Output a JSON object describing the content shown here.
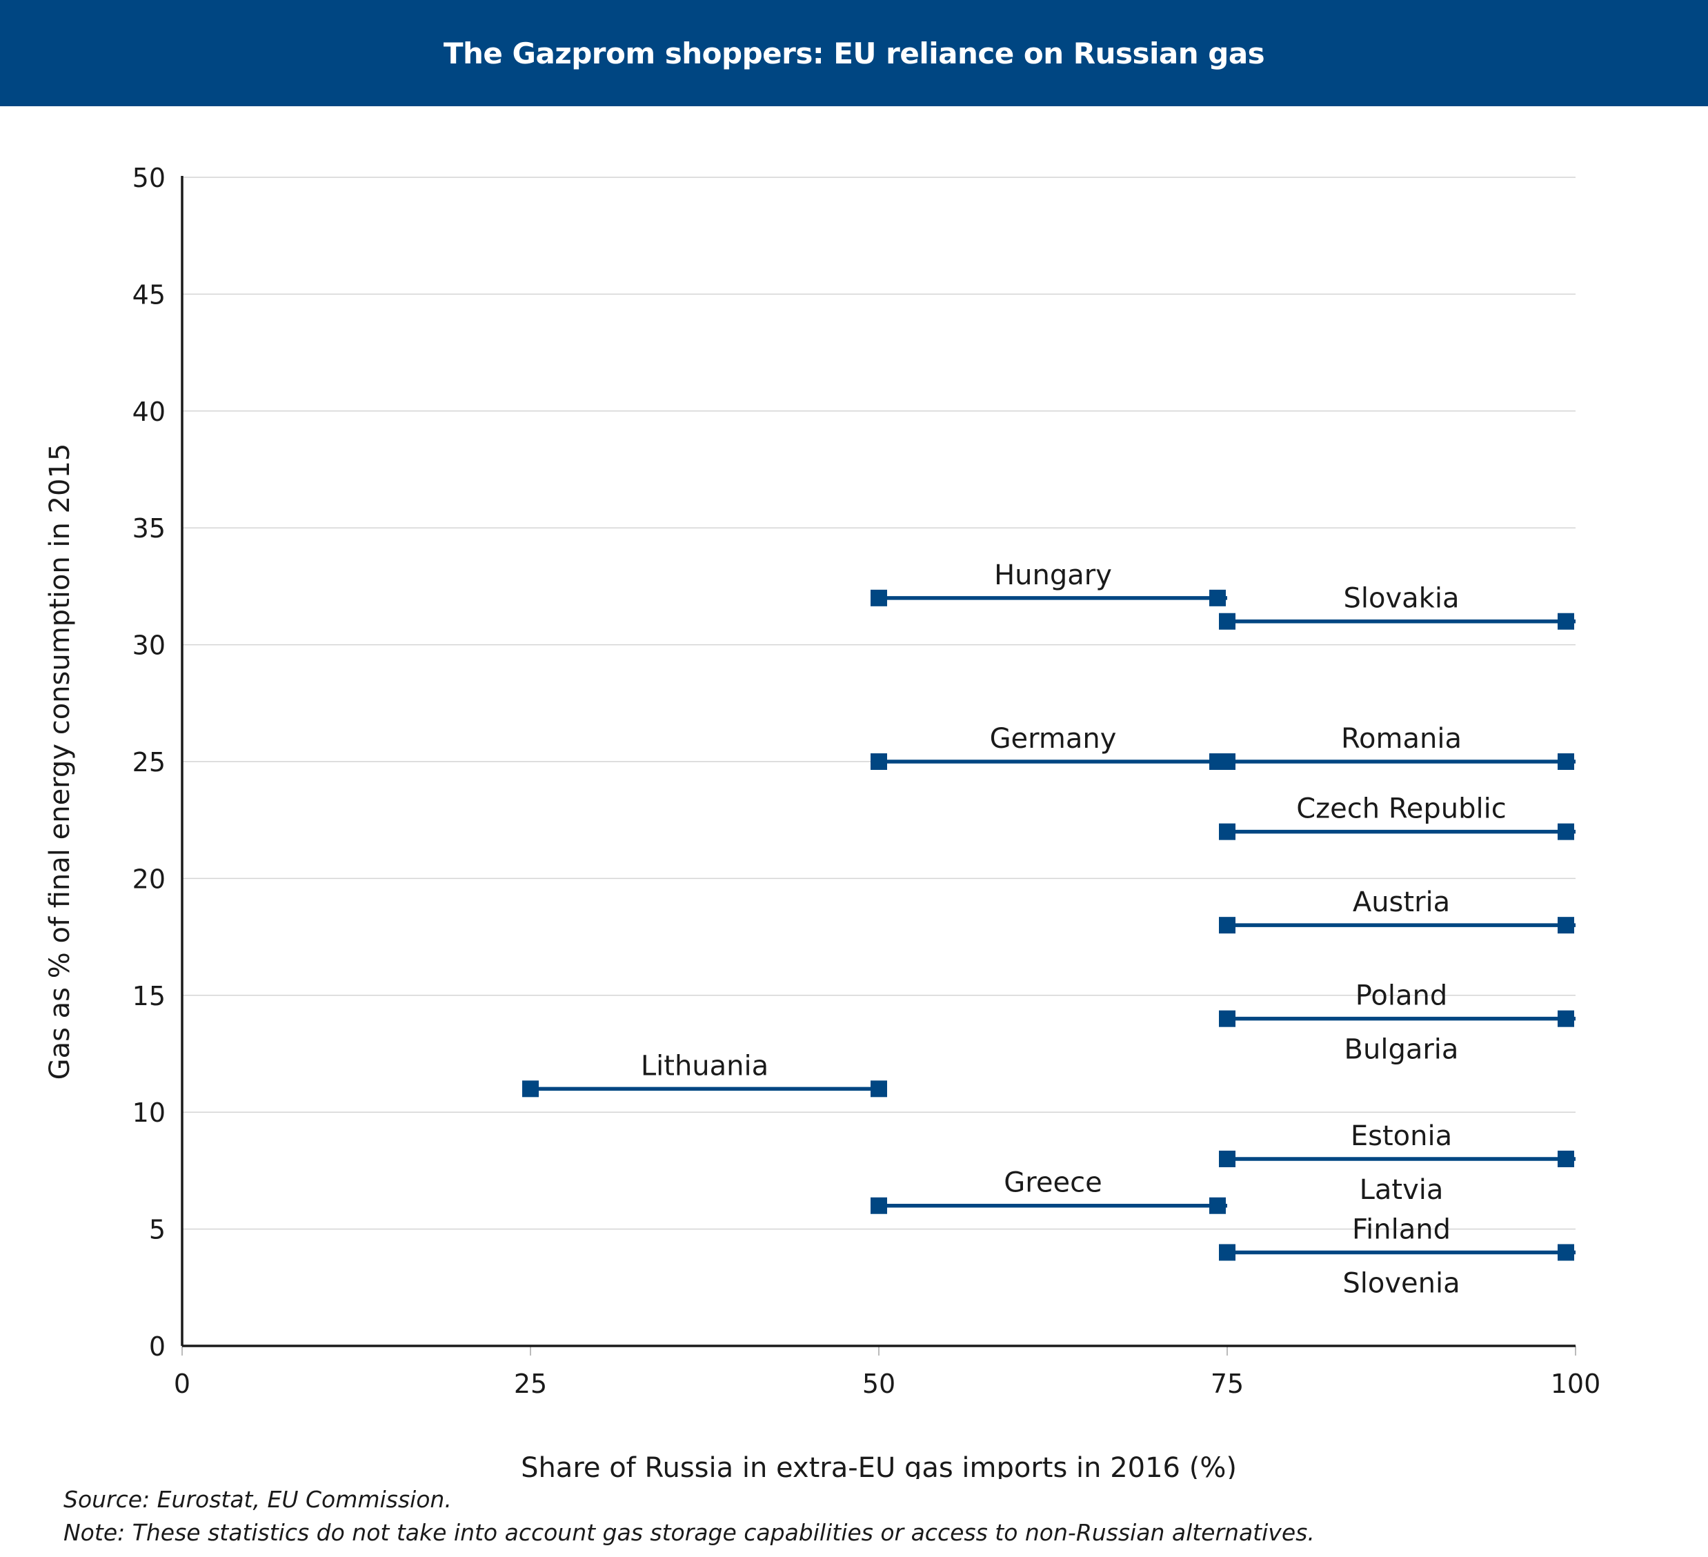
{
  "header": {
    "title": "The Gazprom shoppers: EU reliance on Russian gas"
  },
  "footer": {
    "source": "Source: Eurostat, EU Commission.",
    "note": "Note: These statistics do not take into account gas storage capabilities or access to non-Russian alternatives."
  },
  "chart_data": {
    "type": "range-line",
    "xlabel": "Share of Russia in extra-EU gas imports in 2016 (%)",
    "ylabel": "Gas as % of final energy consumption in 2015",
    "xlim": [
      0,
      100
    ],
    "ylim": [
      0,
      50
    ],
    "xticks": [
      0,
      25,
      50,
      75,
      100
    ],
    "yticks": [
      0,
      5,
      10,
      15,
      20,
      25,
      30,
      35,
      40,
      45,
      50
    ],
    "grid": "horizontal",
    "marker_color": "#004682",
    "line_color": "#004682",
    "series": [
      {
        "labels": [
          "Hungary"
        ],
        "x": [
          50,
          75
        ],
        "y": [
          32,
          32
        ]
      },
      {
        "labels": [
          "Slovakia"
        ],
        "x": [
          75,
          100
        ],
        "y": [
          31,
          31
        ]
      },
      {
        "labels": [
          "Germany"
        ],
        "x": [
          50,
          75
        ],
        "y": [
          25,
          25
        ]
      },
      {
        "labels": [
          "Romania"
        ],
        "x": [
          75,
          100
        ],
        "y": [
          25,
          25
        ]
      },
      {
        "labels": [
          "Czech Republic"
        ],
        "x": [
          75,
          100
        ],
        "y": [
          22,
          22
        ]
      },
      {
        "labels": [
          "Austria"
        ],
        "x": [
          75,
          100
        ],
        "y": [
          18,
          18
        ]
      },
      {
        "labels": [
          "Poland",
          "Bulgaria"
        ],
        "x": [
          75,
          100
        ],
        "y": [
          14,
          14
        ]
      },
      {
        "labels": [
          "Lithuania"
        ],
        "x": [
          25,
          50
        ],
        "y": [
          11,
          11
        ]
      },
      {
        "labels": [
          "Estonia",
          "Latvia"
        ],
        "x": [
          75,
          100
        ],
        "y": [
          8,
          8
        ]
      },
      {
        "labels": [
          "Greece"
        ],
        "x": [
          50,
          75
        ],
        "y": [
          6,
          6
        ]
      },
      {
        "labels": [
          "Finland",
          "Slovenia"
        ],
        "x": [
          75,
          100
        ],
        "y": [
          4,
          4
        ]
      }
    ]
  }
}
